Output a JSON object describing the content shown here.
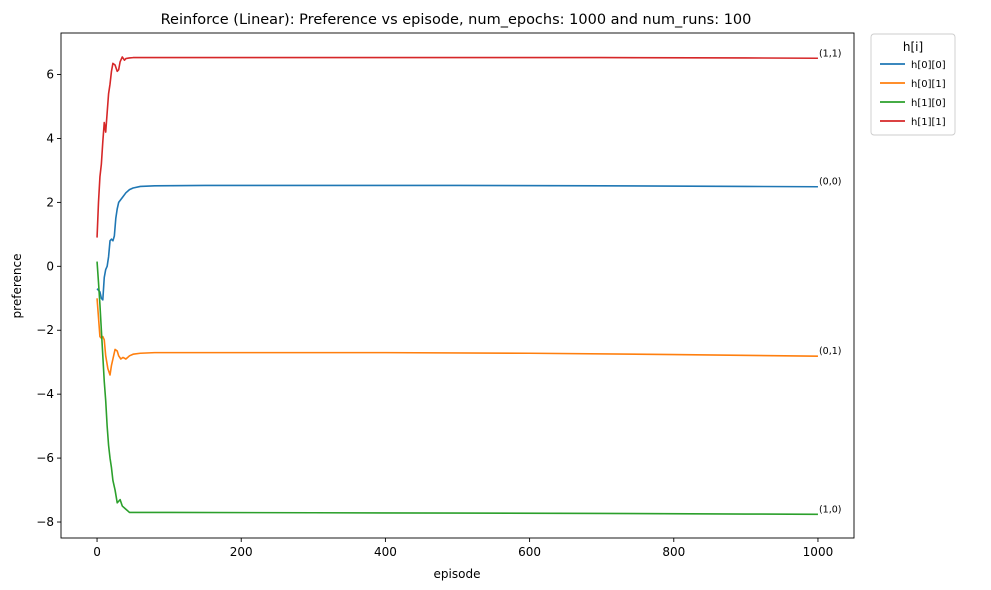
{
  "chart_data": {
    "type": "line",
    "title": "Reinforce (Linear): Preference vs episode, num_epochs: 1000 and num_runs: 100",
    "xlabel": "episode",
    "ylabel": "preference",
    "xlim": [
      -50,
      1050
    ],
    "ylim": [
      -8.5,
      7.3
    ],
    "xticks": [
      0,
      200,
      400,
      600,
      800,
      1000
    ],
    "yticks": [
      -8,
      -6,
      -4,
      -2,
      0,
      2,
      4,
      6
    ],
    "ytick_labels": [
      "−8",
      "−6",
      "−4",
      "−2",
      "0",
      "2",
      "4",
      "6"
    ],
    "grid": false,
    "legend": {
      "title": "h[i]",
      "placement": "outside top-right"
    },
    "series": [
      {
        "name": "h[0][0]",
        "end_label": "(0,0)",
        "color": "#1f77b4",
        "points": [
          [
            0,
            -0.7
          ],
          [
            2,
            -0.75
          ],
          [
            4,
            -0.8
          ],
          [
            6,
            -1.0
          ],
          [
            8,
            -1.05
          ],
          [
            9,
            -0.7
          ],
          [
            10,
            -0.35
          ],
          [
            12,
            -0.1
          ],
          [
            14,
            0.0
          ],
          [
            16,
            0.3
          ],
          [
            18,
            0.8
          ],
          [
            20,
            0.85
          ],
          [
            22,
            0.8
          ],
          [
            24,
            0.95
          ],
          [
            26,
            1.5
          ],
          [
            28,
            1.8
          ],
          [
            30,
            2.0
          ],
          [
            35,
            2.15
          ],
          [
            40,
            2.3
          ],
          [
            45,
            2.4
          ],
          [
            50,
            2.45
          ],
          [
            60,
            2.5
          ],
          [
            80,
            2.52
          ],
          [
            150,
            2.53
          ],
          [
            300,
            2.53
          ],
          [
            500,
            2.53
          ],
          [
            700,
            2.52
          ],
          [
            900,
            2.5
          ],
          [
            1000,
            2.49
          ]
        ]
      },
      {
        "name": "h[0][1]",
        "end_label": "(0,1)",
        "color": "#ff7f0e",
        "points": [
          [
            0,
            -1.0
          ],
          [
            2,
            -1.6
          ],
          [
            4,
            -2.2
          ],
          [
            6,
            -2.25
          ],
          [
            8,
            -2.2
          ],
          [
            10,
            -2.3
          ],
          [
            12,
            -2.8
          ],
          [
            15,
            -3.2
          ],
          [
            18,
            -3.4
          ],
          [
            20,
            -3.1
          ],
          [
            22,
            -2.9
          ],
          [
            25,
            -2.6
          ],
          [
            28,
            -2.65
          ],
          [
            30,
            -2.8
          ],
          [
            33,
            -2.9
          ],
          [
            36,
            -2.85
          ],
          [
            40,
            -2.9
          ],
          [
            45,
            -2.8
          ],
          [
            50,
            -2.75
          ],
          [
            60,
            -2.72
          ],
          [
            80,
            -2.7
          ],
          [
            200,
            -2.7
          ],
          [
            400,
            -2.7
          ],
          [
            600,
            -2.72
          ],
          [
            800,
            -2.76
          ],
          [
            1000,
            -2.81
          ]
        ]
      },
      {
        "name": "h[1][0]",
        "end_label": "(1,0)",
        "color": "#2ca02c",
        "points": [
          [
            0,
            0.15
          ],
          [
            2,
            -0.5
          ],
          [
            4,
            -1.2
          ],
          [
            6,
            -2.0
          ],
          [
            8,
            -2.8
          ],
          [
            10,
            -3.6
          ],
          [
            12,
            -4.2
          ],
          [
            14,
            -5.0
          ],
          [
            16,
            -5.6
          ],
          [
            18,
            -6.0
          ],
          [
            20,
            -6.3
          ],
          [
            22,
            -6.7
          ],
          [
            25,
            -7.0
          ],
          [
            28,
            -7.4
          ],
          [
            30,
            -7.35
          ],
          [
            32,
            -7.3
          ],
          [
            35,
            -7.5
          ],
          [
            40,
            -7.6
          ],
          [
            45,
            -7.7
          ],
          [
            50,
            -7.7
          ],
          [
            100,
            -7.7
          ],
          [
            300,
            -7.71
          ],
          [
            500,
            -7.72
          ],
          [
            700,
            -7.73
          ],
          [
            900,
            -7.75
          ],
          [
            1000,
            -7.76
          ]
        ]
      },
      {
        "name": "h[1][1]",
        "end_label": "(1,1)",
        "color": "#d62728",
        "points": [
          [
            0,
            0.9
          ],
          [
            2,
            2.0
          ],
          [
            4,
            2.8
          ],
          [
            6,
            3.2
          ],
          [
            8,
            3.9
          ],
          [
            10,
            4.5
          ],
          [
            12,
            4.2
          ],
          [
            14,
            4.8
          ],
          [
            16,
            5.4
          ],
          [
            18,
            5.7
          ],
          [
            20,
            6.1
          ],
          [
            22,
            6.35
          ],
          [
            25,
            6.3
          ],
          [
            28,
            6.1
          ],
          [
            30,
            6.15
          ],
          [
            32,
            6.4
          ],
          [
            35,
            6.55
          ],
          [
            38,
            6.45
          ],
          [
            40,
            6.5
          ],
          [
            45,
            6.52
          ],
          [
            50,
            6.53
          ],
          [
            100,
            6.53
          ],
          [
            300,
            6.53
          ],
          [
            500,
            6.53
          ],
          [
            700,
            6.53
          ],
          [
            900,
            6.52
          ],
          [
            1000,
            6.51
          ]
        ]
      }
    ]
  }
}
